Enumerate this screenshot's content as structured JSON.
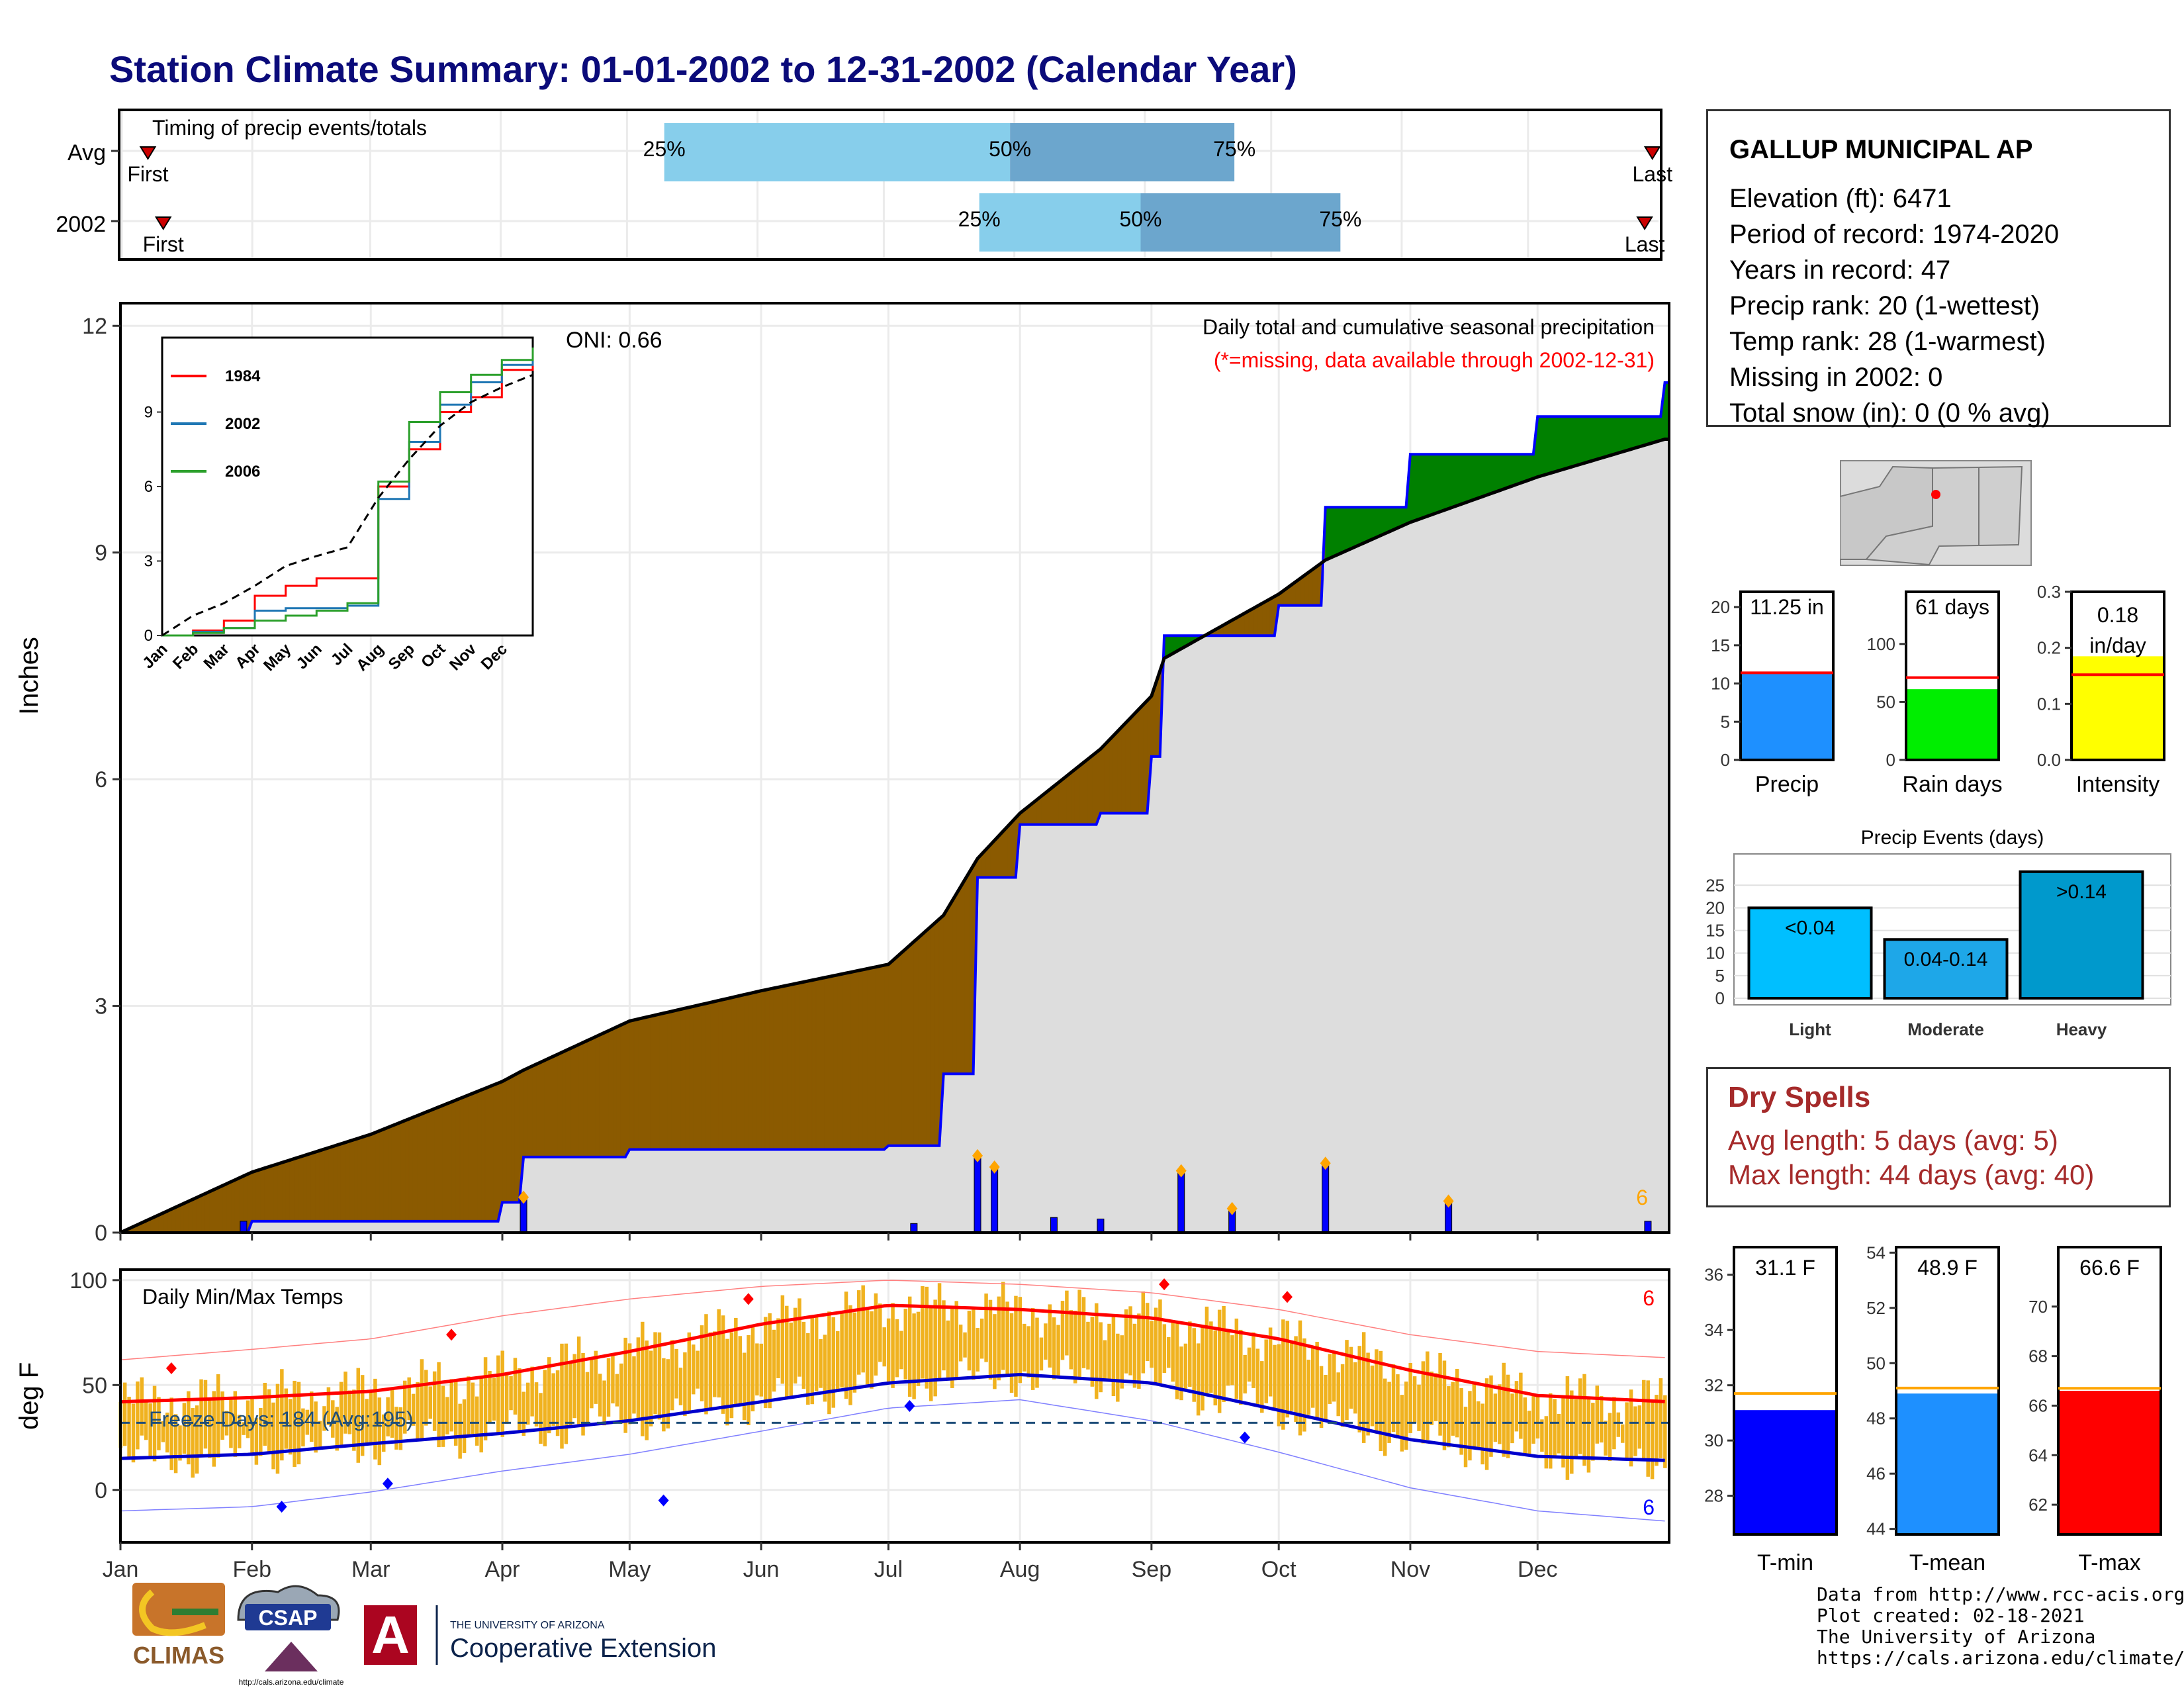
{
  "title": "Station Climate Summary: 01-01-2002 to 12-31-2002 (Calendar Year)",
  "timing": {
    "label": "Timing of precip events/totals",
    "rows": [
      {
        "name": "Avg",
        "q25": 0.353,
        "q50": 0.578,
        "q75": 0.724,
        "first": 0.017,
        "last": 0.996
      },
      {
        "name": "2002",
        "q25": 0.558,
        "q50": 0.663,
        "q75": 0.793,
        "first": 0.027,
        "last": 0.991
      }
    ],
    "first_label": "First",
    "last_label": "Last",
    "q25_label": "25%",
    "q50_label": "50%",
    "q75_label": "75%"
  },
  "precip": {
    "ylabel": "Inches",
    "yticks": [
      "0",
      "3",
      "6",
      "9",
      "12"
    ],
    "title": "Daily total and cumulative seasonal precipitation",
    "subtitle": "(*=missing, data available through 2002-12-31)",
    "oni": "ONI: 0.66",
    "count_label": "6"
  },
  "inset": {
    "yticks": [
      "0",
      "3",
      "6",
      "9"
    ],
    "months": [
      "Jan",
      "Feb",
      "Mar",
      "Apr",
      "May",
      "Jun",
      "Jul",
      "Aug",
      "Sep",
      "Oct",
      "Nov",
      "Dec"
    ],
    "legend": [
      "1984",
      "2002",
      "2006"
    ]
  },
  "temp": {
    "ylabel": "deg F",
    "title": "Daily Min/Max Temps",
    "freeze": "Freeze Days: 184 (Avg:195)",
    "yticks": [
      "0",
      "50",
      "100"
    ],
    "max_count": "6",
    "min_count": "6"
  },
  "months": [
    "Jan",
    "Feb",
    "Mar",
    "Apr",
    "May",
    "Jun",
    "Jul",
    "Aug",
    "Sep",
    "Oct",
    "Nov",
    "Dec"
  ],
  "station": {
    "name": "GALLUP MUNICIPAL AP",
    "lines": [
      "Elevation (ft): 6471",
      "Period of record: 1974-2020",
      "Years in record: 47",
      "Precip rank: 20 (1-wettest)",
      "Temp rank: 28 (1-warmest)",
      "Missing in 2002: 0",
      "Total snow (in): 0 (0 % avg)"
    ]
  },
  "summary_bars": [
    {
      "label": "Precip",
      "value_text": "11.25 in",
      "value": 11.25,
      "avg": 11.4,
      "max": 22,
      "ticks": [
        "0",
        "5",
        "10",
        "15",
        "20"
      ],
      "color": "#1e90ff"
    },
    {
      "label": "Rain days",
      "value_text": "61 days",
      "value": 61,
      "avg": 71,
      "max": 145,
      "ticks": [
        "0",
        "50",
        "100"
      ],
      "color": "#00ee00"
    },
    {
      "label": "Intensity",
      "value_text": "0.18 in/day",
      "value": 0.185,
      "avg": 0.152,
      "max": 0.3,
      "ticks": [
        "0.0",
        "0.1",
        "0.2",
        "0.3"
      ],
      "color": "#ffff00"
    }
  ],
  "events": {
    "title": "Precip Events (days)",
    "ticks": [
      "0",
      "5",
      "10",
      "15",
      "20",
      "25"
    ],
    "bars": [
      {
        "label": "Light",
        "value": 20,
        "tag": "<0.04",
        "color": "#00bfff"
      },
      {
        "label": "Moderate",
        "value": 13,
        "tag": "0.04-0.14",
        "color": "#1ea7e8"
      },
      {
        "label": "Heavy",
        "value": 28,
        "tag": ">0.14",
        "color": "#0099cc"
      }
    ]
  },
  "dry_spells": {
    "title": "Dry Spells",
    "avg_line": "Avg length: 5 days (avg: 5)",
    "max_line": "Max length: 44 days (avg: 40)"
  },
  "temp_bars": [
    {
      "label": "T-min",
      "value_text": "31.1 F",
      "value": 31.1,
      "avg": 31.7,
      "ymin": 26.6,
      "ymax": 37,
      "ticks": [
        "28",
        "30",
        "32",
        "34",
        "36"
      ],
      "color": "#0000ff"
    },
    {
      "label": "T-mean",
      "value_text": "48.9 F",
      "value": 48.9,
      "avg": 49.1,
      "ymin": 43.8,
      "ymax": 54.2,
      "ticks": [
        "44",
        "46",
        "48",
        "50",
        "52",
        "54"
      ],
      "color": "#1e90ff"
    },
    {
      "label": "T-max",
      "value_text": "66.6 F",
      "value": 66.6,
      "avg": 66.7,
      "ymin": 60.8,
      "ymax": 72.4,
      "ticks": [
        "62",
        "64",
        "66",
        "68",
        "70"
      ],
      "color": "#ff0000"
    }
  ],
  "logos": {
    "climas": "CLIMAS",
    "csap": "CSAP",
    "csap_url": "http://cals.arizona.edu/climate",
    "ua_small": "THE UNIVERSITY OF ARIZONA",
    "coop": "Cooperative Extension"
  },
  "footer": [
    "Data from http://www.rcc-acis.org/",
    "Plot created: 02-18-2021",
    "The University of Arizona",
    "https://cals.arizona.edu/climate/"
  ],
  "chart_data": {
    "type": "area",
    "title": "Daily total and cumulative seasonal precipitation",
    "ylabel": "Inches",
    "ylim": [
      0,
      12.3
    ],
    "x": [
      "2002-01-01",
      "2002-02-01",
      "2002-03-01",
      "2002-04-01",
      "2002-04-06",
      "2002-05-01",
      "2002-06-01",
      "2002-07-01",
      "2002-07-14",
      "2002-07-22",
      "2002-08-01",
      "2002-08-20",
      "2002-09-01",
      "2002-09-04",
      "2002-10-01",
      "2002-10-12",
      "2002-11-01",
      "2002-12-01",
      "2002-12-31"
    ],
    "series": [
      {
        "name": "2002",
        "values": [
          0,
          0.15,
          0.15,
          0.4,
          1.0,
          1.1,
          1.1,
          1.15,
          2.1,
          4.7,
          5.4,
          5.55,
          6.3,
          7.9,
          8.3,
          9.6,
          10.3,
          10.8,
          11.25
        ]
      },
      {
        "name": "Avg",
        "values": [
          0,
          0.8,
          1.3,
          2.0,
          2.15,
          2.8,
          3.2,
          3.55,
          4.2,
          4.95,
          5.55,
          6.4,
          7.1,
          7.6,
          8.45,
          8.9,
          9.4,
          10.0,
          10.5
        ]
      }
    ],
    "daily_precip_events": [
      {
        "date": "2002-01-30",
        "value": 0.15
      },
      {
        "date": "2002-04-06",
        "value": 0.45
      },
      {
        "date": "2002-07-07",
        "value": 0.12
      },
      {
        "date": "2002-07-22",
        "value": 1.0
      },
      {
        "date": "2002-07-26",
        "value": 0.85
      },
      {
        "date": "2002-08-09",
        "value": 0.2
      },
      {
        "date": "2002-08-20",
        "value": 0.18
      },
      {
        "date": "2002-09-08",
        "value": 0.8
      },
      {
        "date": "2002-09-20",
        "value": 0.3
      },
      {
        "date": "2002-10-12",
        "value": 0.9
      },
      {
        "date": "2002-11-10",
        "value": 0.4
      },
      {
        "date": "2002-12-27",
        "value": 0.15
      }
    ],
    "inset_series": [
      {
        "name": "1984",
        "values": [
          0,
          0.2,
          0.6,
          1.6,
          2.0,
          2.3,
          2.3,
          6.0,
          7.5,
          9.0,
          9.6,
          10.7,
          11.5
        ]
      },
      {
        "name": "2002",
        "values": [
          0,
          0.15,
          0.3,
          1.0,
          1.1,
          1.1,
          1.2,
          5.5,
          7.8,
          9.3,
          10.2,
          10.9,
          11.3
        ]
      },
      {
        "name": "2006",
        "values": [
          0,
          0.1,
          0.3,
          0.6,
          0.8,
          1.0,
          1.3,
          6.2,
          8.6,
          9.8,
          10.5,
          11.1,
          11.6
        ]
      }
    ],
    "temperature": {
      "ylabel": "deg F",
      "ylim": [
        -25,
        105
      ],
      "freeze_line": 32,
      "normal_max": [
        42,
        44,
        47,
        55,
        66,
        79,
        88,
        86,
        82,
        72,
        57,
        45,
        42
      ],
      "normal_min": [
        15,
        17,
        22,
        27,
        33,
        42,
        51,
        55,
        51,
        38,
        24,
        16,
        14
      ],
      "record_max": [
        62,
        67,
        72,
        83,
        91,
        97,
        100,
        98,
        94,
        86,
        74,
        66,
        63
      ],
      "record_min": [
        -15,
        -13,
        -6,
        4,
        12,
        23,
        34,
        38,
        28,
        13,
        -4,
        -15,
        -20
      ]
    }
  }
}
